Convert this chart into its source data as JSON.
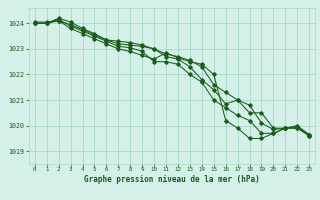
{
  "title": "Graphe pression niveau de la mer (hPa)",
  "background_color": "#d4f0e8",
  "grid_color": "#a8d8c8",
  "line_color": "#1a5c1a",
  "xlim": [
    -0.5,
    23.5
  ],
  "ylim": [
    1018.5,
    1024.6
  ],
  "yticks": [
    1019,
    1020,
    1021,
    1022,
    1023,
    1024
  ],
  "xticks": [
    0,
    1,
    2,
    3,
    4,
    5,
    6,
    7,
    8,
    9,
    10,
    11,
    12,
    13,
    14,
    15,
    16,
    17,
    18,
    19,
    20,
    21,
    22,
    23
  ],
  "series": [
    {
      "x": [
        0,
        1,
        2,
        3,
        4,
        5,
        6,
        7,
        8,
        9,
        10,
        11,
        12,
        13,
        14,
        15,
        16,
        17,
        18,
        19,
        20,
        21,
        22,
        23
      ],
      "y": [
        1024.0,
        1024.0,
        1024.1,
        1023.8,
        1023.6,
        1023.4,
        1023.2,
        1023.0,
        1022.9,
        1022.75,
        1022.6,
        1022.85,
        1022.65,
        1022.5,
        1022.4,
        1022.0,
        1020.2,
        1019.9,
        1019.5,
        1019.5,
        1019.7,
        1019.9,
        1019.9,
        1019.65
      ]
    },
    {
      "x": [
        0,
        1,
        2,
        3,
        4,
        5,
        6,
        7,
        8,
        9,
        10,
        11,
        12,
        13,
        14,
        15,
        16,
        17,
        18,
        19,
        20,
        21,
        22,
        23
      ],
      "y": [
        1024.0,
        1024.0,
        1024.15,
        1023.9,
        1023.7,
        1023.5,
        1023.3,
        1023.1,
        1023.05,
        1022.9,
        1022.5,
        1022.5,
        1022.4,
        1022.0,
        1021.7,
        1021.0,
        1020.7,
        1020.4,
        1020.2,
        1019.7,
        1019.7,
        1019.9,
        1019.95,
        1019.6
      ]
    },
    {
      "x": [
        0,
        1,
        2,
        3,
        4,
        5,
        6,
        7,
        8,
        9,
        10,
        11,
        12,
        13,
        14,
        15,
        16,
        17,
        18,
        19,
        20,
        21,
        22,
        23
      ],
      "y": [
        1024.0,
        1024.0,
        1024.2,
        1024.05,
        1023.8,
        1023.6,
        1023.35,
        1023.2,
        1023.15,
        1023.1,
        1023.0,
        1022.7,
        1022.6,
        1022.3,
        1021.8,
        1021.4,
        1020.85,
        1021.0,
        1020.5,
        1020.5,
        1019.9,
        1019.9,
        1020.0,
        1019.65
      ]
    },
    {
      "x": [
        0,
        1,
        2,
        3,
        4,
        5,
        6,
        7,
        8,
        9,
        10,
        11,
        12,
        13,
        14,
        15,
        16,
        17,
        18,
        19,
        20,
        21,
        22,
        23
      ],
      "y": [
        1024.05,
        1024.05,
        1024.1,
        1023.95,
        1023.75,
        1023.55,
        1023.35,
        1023.3,
        1023.25,
        1023.15,
        1023.0,
        1022.8,
        1022.7,
        1022.55,
        1022.3,
        1021.6,
        1021.3,
        1021.0,
        1020.8,
        1020.1,
        1019.85,
        1019.9,
        1019.9,
        1019.6
      ]
    }
  ]
}
